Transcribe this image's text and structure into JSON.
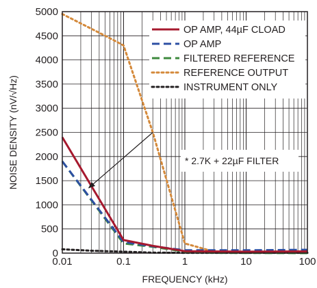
{
  "chart_data": {
    "type": "line",
    "title": "",
    "xlabel": "FREQUENCY (kHz)",
    "ylabel": "NOISE DENSITY (nV/√Hz)",
    "x_scale": "log",
    "xlim": [
      0.01,
      100
    ],
    "ylim": [
      0,
      5000
    ],
    "x_ticks": [
      "0.01",
      "0.1",
      "1",
      "10",
      "100"
    ],
    "y_ticks": [
      "0",
      "500",
      "1000",
      "1500",
      "2000",
      "2500",
      "3000",
      "3500",
      "4000",
      "4500",
      "5000"
    ],
    "grid": true,
    "legend_position": "top-right",
    "series": [
      {
        "name": "OP AMP, 44µF CLOAD",
        "color": "#a6192e",
        "style": "solid",
        "points": [
          [
            0.01,
            2400
          ],
          [
            0.1,
            270
          ],
          [
            0.3,
            150
          ],
          [
            1,
            40
          ],
          [
            10,
            30
          ],
          [
            100,
            35
          ]
        ]
      },
      {
        "name": "OP AMP",
        "color": "#2d4fa3",
        "style": "dashed",
        "points": [
          [
            0.01,
            1900
          ],
          [
            0.1,
            230
          ],
          [
            0.3,
            140
          ],
          [
            1,
            60
          ],
          [
            10,
            60
          ],
          [
            100,
            70
          ]
        ]
      },
      {
        "name": "FILTERED REFERENCE",
        "color": "#3d8a3d",
        "style": "dashed",
        "points": [
          [
            0.01,
            1900
          ],
          [
            0.1,
            200
          ],
          [
            0.3,
            130
          ],
          [
            1,
            30
          ],
          [
            3,
            5
          ],
          [
            100,
            0
          ]
        ]
      },
      {
        "name": "REFERENCE OUTPUT",
        "color": "#d4893a",
        "style": "dotted",
        "points": [
          [
            0.01,
            4950
          ],
          [
            0.05,
            4500
          ],
          [
            0.1,
            4300
          ],
          [
            0.3,
            2500
          ],
          [
            1,
            200
          ],
          [
            3,
            30
          ],
          [
            10,
            10
          ],
          [
            100,
            5
          ]
        ]
      },
      {
        "name": "INSTRUMENT ONLY",
        "color": "#231f20",
        "style": "dotted",
        "points": [
          [
            0.01,
            80
          ],
          [
            0.03,
            50
          ],
          [
            0.1,
            30
          ],
          [
            0.3,
            10
          ],
          [
            1,
            5
          ],
          [
            100,
            5
          ]
        ]
      }
    ],
    "annotation": {
      "text": "* 2.7K + 22µF FILTER",
      "arrow_from": [
        0.3,
        2500
      ],
      "arrow_to": [
        0.027,
        1350
      ]
    }
  }
}
